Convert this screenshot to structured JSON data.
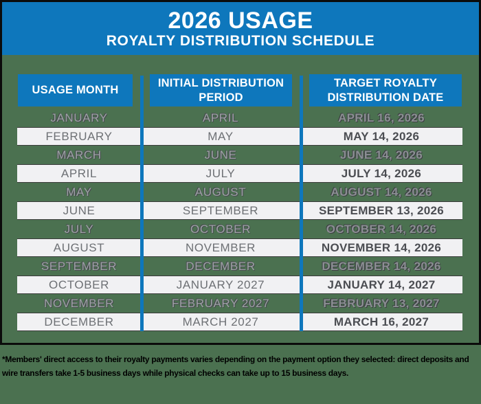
{
  "banner": {
    "title": "2026 USAGE",
    "subtitle": "ROYALTY DISTRIBUTION SCHEDULE"
  },
  "table": {
    "headers": [
      "USAGE MONTH",
      "INITIAL DISTRIBUTION PERIOD",
      "TARGET ROYALTY DISTRIBUTION DATE"
    ],
    "rows": [
      {
        "usage_month": "JANUARY",
        "initial_distribution_period": "APRIL",
        "target_distribution_date": "APRIL 16, 2026"
      },
      {
        "usage_month": "FEBRUARY",
        "initial_distribution_period": "MAY",
        "target_distribution_date": "MAY 14, 2026"
      },
      {
        "usage_month": "MARCH",
        "initial_distribution_period": "JUNE",
        "target_distribution_date": "JUNE 14, 2026"
      },
      {
        "usage_month": "APRIL",
        "initial_distribution_period": "JULY",
        "target_distribution_date": "JULY 14, 2026"
      },
      {
        "usage_month": "MAY",
        "initial_distribution_period": "AUGUST",
        "target_distribution_date": "AUGUST 14, 2026"
      },
      {
        "usage_month": "JUNE",
        "initial_distribution_period": "SEPTEMBER",
        "target_distribution_date": "SEPTEMBER 13, 2026"
      },
      {
        "usage_month": "JULY",
        "initial_distribution_period": "OCTOBER",
        "target_distribution_date": "OCTOBER 14, 2026"
      },
      {
        "usage_month": "AUGUST",
        "initial_distribution_period": "NOVEMBER",
        "target_distribution_date": "NOVEMBER 14, 2026"
      },
      {
        "usage_month": "SEPTEMBER",
        "initial_distribution_period": "DECEMBER",
        "target_distribution_date": "DECEMBER 14, 2026"
      },
      {
        "usage_month": "OCTOBER",
        "initial_distribution_period": "JANUARY 2027",
        "target_distribution_date": "JANUARY 14, 2027"
      },
      {
        "usage_month": "NOVEMBER",
        "initial_distribution_period": "FEBRUARY 2027",
        "target_distribution_date": "FEBRUARY 13, 2027"
      },
      {
        "usage_month": "DECEMBER",
        "initial_distribution_period": "MARCH 2027",
        "target_distribution_date": "MARCH 16, 2027"
      }
    ]
  },
  "footnote": "*Members' direct access to their royalty payments varies depending on the payment option they selected: direct deposits and wire transfers take 1-5 business days while physical checks can take up to 15 business days.",
  "colors": {
    "banner_blue": "#0e77bc",
    "background_green": "#4b7150",
    "row_white": "#f1f1f3"
  }
}
